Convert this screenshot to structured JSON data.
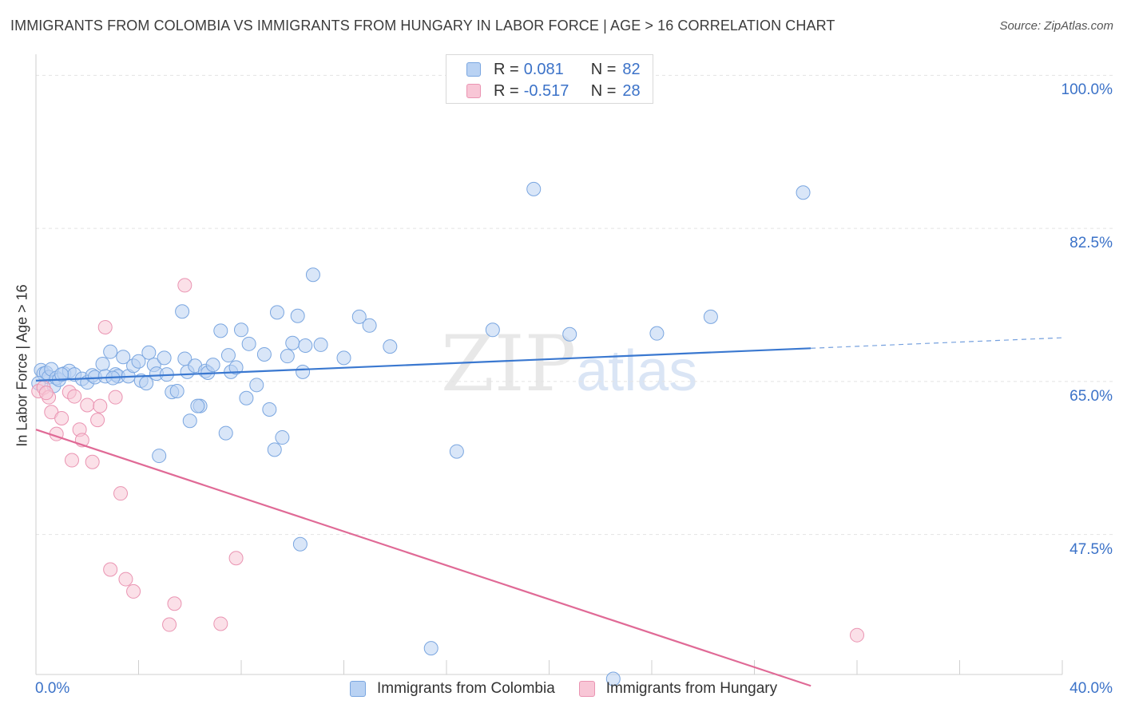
{
  "header": {
    "title": "IMMIGRANTS FROM COLOMBIA VS IMMIGRANTS FROM HUNGARY IN LABOR FORCE | AGE > 16 CORRELATION CHART",
    "source": "Source: ZipAtlas.com"
  },
  "legend": {
    "rows": [
      {
        "r_label": "R =",
        "r_value": "0.081",
        "n_label": "N =",
        "n_value": "82"
      },
      {
        "r_label": "R =",
        "r_value": "-0.517",
        "n_label": "N =",
        "n_value": "28"
      }
    ]
  },
  "watermark": {
    "zip": "ZIP",
    "atlas": "atlas"
  },
  "colors": {
    "colombia_fill": "#b9d2f3",
    "colombia_stroke": "#7aa6e0",
    "colombia_line": "#3a78d0",
    "hungary_fill": "#f8c6d6",
    "hungary_stroke": "#ea94b2",
    "hungary_line": "#e06a96",
    "axis_text": "#3b72c8",
    "grid": "#e3e3e3"
  },
  "chart_data": {
    "type": "scatter",
    "title": "IMMIGRANTS FROM COLOMBIA VS IMMIGRANTS FROM HUNGARY IN LABOR FORCE | AGE > 16 CORRELATION CHART",
    "xlabel": "",
    "ylabel": "In Labor Force | Age > 16",
    "xlim": [
      0,
      40
    ],
    "ylim": [
      31.5,
      101.5
    ],
    "x_tick_labels": [
      "0.0%",
      "40.0%"
    ],
    "y_ticks": [
      100,
      82.5,
      65,
      47.5
    ],
    "y_tick_labels": [
      "100.0%",
      "82.5%",
      "65.0%",
      "47.5%"
    ],
    "grid": true,
    "legend_position": "bottom",
    "series": [
      {
        "name": "Immigrants from Colombia",
        "color": "#7aa6e0",
        "trend": {
          "x": [
            0,
            30.2
          ],
          "y": [
            65.1,
            68.8
          ]
        },
        "trend_dashed": {
          "x": [
            30.2,
            40
          ],
          "y": [
            68.8,
            70.0
          ]
        },
        "points": [
          [
            0.2,
            66.3
          ],
          [
            0.3,
            65.9
          ],
          [
            0.4,
            66.0
          ],
          [
            0.5,
            65.5
          ],
          [
            0.6,
            66.4
          ],
          [
            0.7,
            64.5
          ],
          [
            0.8,
            65.4
          ],
          [
            0.9,
            65.2
          ],
          [
            1.1,
            65.9
          ],
          [
            1.3,
            66.2
          ],
          [
            1.5,
            65.8
          ],
          [
            1.8,
            65.3
          ],
          [
            2.0,
            64.9
          ],
          [
            2.2,
            65.7
          ],
          [
            2.3,
            65.5
          ],
          [
            2.6,
            67.0
          ],
          [
            2.9,
            68.4
          ],
          [
            3.1,
            65.8
          ],
          [
            3.2,
            65.6
          ],
          [
            3.4,
            67.8
          ],
          [
            3.6,
            65.6
          ],
          [
            3.8,
            66.8
          ],
          [
            4.0,
            67.3
          ],
          [
            4.1,
            65.1
          ],
          [
            4.3,
            64.8
          ],
          [
            4.4,
            68.3
          ],
          [
            4.6,
            66.9
          ],
          [
            4.7,
            65.9
          ],
          [
            4.8,
            56.5
          ],
          [
            5.0,
            67.7
          ],
          [
            5.1,
            65.8
          ],
          [
            5.3,
            63.8
          ],
          [
            5.5,
            63.9
          ],
          [
            5.7,
            73.0
          ],
          [
            5.8,
            67.6
          ],
          [
            5.9,
            66.1
          ],
          [
            6.0,
            60.5
          ],
          [
            6.2,
            66.8
          ],
          [
            6.4,
            62.2
          ],
          [
            6.6,
            66.2
          ],
          [
            6.7,
            66.0
          ],
          [
            6.9,
            66.9
          ],
          [
            7.2,
            70.8
          ],
          [
            7.4,
            59.1
          ],
          [
            7.5,
            68.0
          ],
          [
            7.6,
            66.1
          ],
          [
            7.8,
            66.6
          ],
          [
            8.0,
            70.9
          ],
          [
            8.2,
            63.1
          ],
          [
            8.3,
            69.3
          ],
          [
            8.6,
            64.6
          ],
          [
            8.9,
            68.1
          ],
          [
            9.1,
            61.8
          ],
          [
            9.3,
            57.2
          ],
          [
            9.4,
            72.9
          ],
          [
            9.6,
            58.6
          ],
          [
            9.8,
            67.9
          ],
          [
            10.0,
            69.4
          ],
          [
            10.2,
            72.5
          ],
          [
            10.3,
            46.4
          ],
          [
            10.4,
            66.1
          ],
          [
            10.5,
            69.1
          ],
          [
            10.8,
            77.2
          ],
          [
            11.1,
            69.2
          ],
          [
            12.0,
            67.7
          ],
          [
            12.6,
            72.4
          ],
          [
            13.0,
            71.4
          ],
          [
            13.8,
            69.0
          ],
          [
            15.4,
            34.5
          ],
          [
            16.4,
            57.0
          ],
          [
            17.8,
            70.9
          ],
          [
            19.4,
            87.0
          ],
          [
            20.8,
            70.4
          ],
          [
            22.5,
            31.0
          ],
          [
            24.2,
            70.5
          ],
          [
            26.3,
            72.4
          ],
          [
            29.9,
            86.6
          ],
          [
            0.1,
            64.8
          ],
          [
            1.0,
            65.8
          ],
          [
            2.7,
            65.6
          ],
          [
            3.0,
            65.4
          ],
          [
            6.3,
            62.2
          ]
        ]
      },
      {
        "name": "Immigrants from Hungary",
        "color": "#ea94b2",
        "trend": {
          "x": [
            0,
            30.2
          ],
          "y": [
            59.5,
            30.2
          ]
        },
        "points": [
          [
            0.1,
            63.9
          ],
          [
            0.3,
            64.3
          ],
          [
            0.5,
            63.2
          ],
          [
            0.6,
            61.5
          ],
          [
            0.8,
            59.0
          ],
          [
            1.0,
            60.8
          ],
          [
            1.3,
            63.8
          ],
          [
            1.4,
            56.0
          ],
          [
            1.5,
            63.3
          ],
          [
            1.7,
            59.5
          ],
          [
            1.8,
            58.3
          ],
          [
            2.0,
            62.3
          ],
          [
            2.2,
            55.8
          ],
          [
            2.4,
            60.6
          ],
          [
            2.5,
            62.2
          ],
          [
            2.7,
            71.2
          ],
          [
            2.9,
            43.5
          ],
          [
            3.1,
            63.2
          ],
          [
            3.3,
            52.2
          ],
          [
            3.5,
            42.4
          ],
          [
            3.8,
            41.0
          ],
          [
            5.2,
            37.2
          ],
          [
            5.4,
            39.6
          ],
          [
            5.8,
            76.0
          ],
          [
            7.2,
            37.3
          ],
          [
            7.8,
            44.8
          ],
          [
            32.0,
            36.0
          ],
          [
            0.4,
            63.7
          ]
        ]
      }
    ]
  },
  "bottom_legend": {
    "items": [
      "Immigrants from Colombia",
      "Immigrants from Hungary"
    ]
  }
}
